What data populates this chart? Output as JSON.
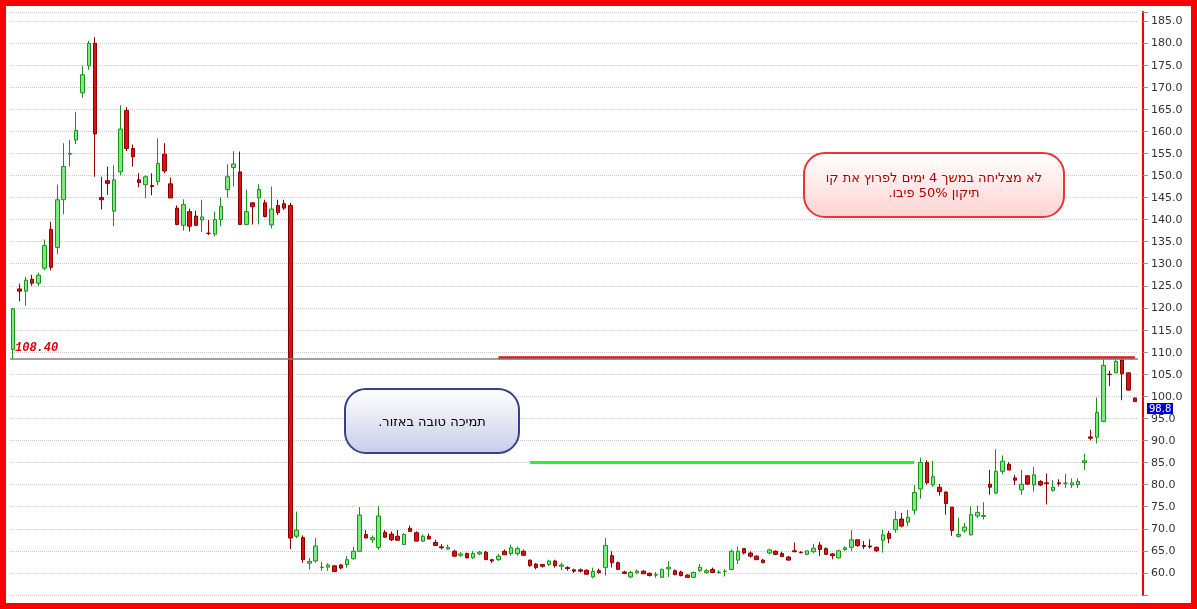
{
  "chart_data": {
    "type": "candlestick",
    "categories": [
      null,
      null,
      null,
      null,
      null,
      null,
      null,
      null,
      null,
      null,
      null,
      null,
      null,
      null,
      null,
      null,
      null,
      null,
      null,
      null,
      null,
      null,
      null,
      null,
      null,
      null,
      null,
      null,
      null,
      null,
      null,
      null,
      null,
      null,
      null,
      null,
      null,
      null,
      null,
      null,
      null,
      null,
      null,
      null,
      null,
      null,
      null,
      null,
      null,
      null,
      null,
      null,
      null,
      null,
      null,
      null,
      null,
      null,
      null,
      null,
      null,
      null,
      null,
      null,
      null,
      null,
      null,
      null,
      null,
      null,
      null,
      null,
      null,
      null,
      null,
      null,
      null,
      null,
      null,
      null,
      null,
      null,
      null,
      null,
      null,
      null,
      null,
      null,
      null,
      null,
      null,
      null,
      null,
      null,
      null,
      null,
      null,
      null,
      null,
      null,
      null,
      null,
      null,
      null,
      null,
      null,
      null,
      null,
      null,
      null,
      null,
      null,
      null,
      null,
      null,
      null,
      null,
      null,
      null,
      null,
      null,
      null,
      null,
      null,
      null,
      null,
      null,
      null,
      null,
      null,
      null,
      null,
      null,
      null,
      null,
      null,
      null,
      null,
      null,
      null,
      null,
      null,
      null,
      null,
      null,
      null,
      null,
      null,
      null,
      null,
      null,
      null,
      null,
      null,
      null,
      null,
      null,
      null,
      null,
      null,
      null,
      null,
      null,
      null,
      null,
      null,
      null,
      null,
      null,
      null,
      null,
      null,
      null,
      null,
      null,
      null,
      null,
      null,
      null
    ],
    "ohlc": [
      [
        110.6,
        120.0,
        108.4,
        119.8
      ],
      [
        124.3,
        125.5,
        121.5,
        123.8
      ],
      [
        123.8,
        127.0,
        120.5,
        126.3
      ],
      [
        126.5,
        127.5,
        125.0,
        125.6
      ],
      [
        125.6,
        128.0,
        125.0,
        127.4
      ],
      [
        129.0,
        135.5,
        128.5,
        134.1
      ],
      [
        137.8,
        139.5,
        128.5,
        129.2
      ],
      [
        133.7,
        147.9,
        132.2,
        144.5
      ],
      [
        144.5,
        157.3,
        141.2,
        152.0
      ],
      [
        154.8,
        158.0,
        152.0,
        155.0
      ],
      [
        158.0,
        164.4,
        157.1,
        160.2
      ],
      [
        168.7,
        174.8,
        167.6,
        172.8
      ],
      [
        174.8,
        180.5,
        173.9,
        179.9
      ],
      [
        179.9,
        181.3,
        149.7,
        159.4
      ],
      [
        145.0,
        149.7,
        142.3,
        144.5
      ],
      [
        148.8,
        152.0,
        145.6,
        148.2
      ],
      [
        141.9,
        152.3,
        138.5,
        149.0
      ],
      [
        150.8,
        165.9,
        150.0,
        160.5
      ],
      [
        164.7,
        165.5,
        155.5,
        156.1
      ],
      [
        156.1,
        157.0,
        152.0,
        154.2
      ],
      [
        149.0,
        150.5,
        147.3,
        148.4
      ],
      [
        147.9,
        150.0,
        144.9,
        149.7
      ],
      [
        147.7,
        150.5,
        145.5,
        147.5
      ],
      [
        148.6,
        158.4,
        147.8,
        152.7
      ],
      [
        154.8,
        157.3,
        150.5,
        151.0
      ],
      [
        148.1,
        149.5,
        144.9,
        144.9
      ],
      [
        142.6,
        143.2,
        138.7,
        138.9
      ],
      [
        138.7,
        144.6,
        137.5,
        143.4
      ],
      [
        141.8,
        142.5,
        137.3,
        138.5
      ],
      [
        140.8,
        142.0,
        138.5,
        138.7
      ],
      [
        139.9,
        144.5,
        137.2,
        140.6
      ],
      [
        136.9,
        139.9,
        136.5,
        136.9
      ],
      [
        136.7,
        141.8,
        136.2,
        140.0
      ],
      [
        140.0,
        145.0,
        138.5,
        143.0
      ],
      [
        146.8,
        152.5,
        145.0,
        149.7
      ],
      [
        151.8,
        155.5,
        147.5,
        152.6
      ],
      [
        150.8,
        155.4,
        138.9,
        138.9
      ],
      [
        138.9,
        146.8,
        138.7,
        141.8
      ],
      [
        143.8,
        143.8,
        138.9,
        142.9
      ],
      [
        144.9,
        148.0,
        138.9,
        146.8
      ],
      [
        143.8,
        144.5,
        140.5,
        140.7
      ],
      [
        138.8,
        147.5,
        138.0,
        142.4
      ],
      [
        143.2,
        144.5,
        141.0,
        141.6
      ],
      [
        143.6,
        144.5,
        142.2,
        142.6
      ],
      [
        143.2,
        143.8,
        65.4,
        67.9
      ],
      [
        68.3,
        73.9,
        67.9,
        69.7
      ],
      [
        68.0,
        68.5,
        62.3,
        63.0
      ],
      [
        62.2,
        63.4,
        60.8,
        62.6
      ],
      [
        62.7,
        67.9,
        62.3,
        66.1
      ],
      [
        61.2,
        62.5,
        60.5,
        61.3
      ],
      [
        61.3,
        62.2,
        60.5,
        61.8
      ],
      [
        61.6,
        61.7,
        60.3,
        60.3
      ],
      [
        61.8,
        62.0,
        60.8,
        61.1
      ],
      [
        61.9,
        63.8,
        61.2,
        63.0
      ],
      [
        63.2,
        65.9,
        63.0,
        64.9
      ],
      [
        64.9,
        74.9,
        64.9,
        73.1
      ],
      [
        68.7,
        69.7,
        67.9,
        67.9
      ],
      [
        67.5,
        68.5,
        66.8,
        68.0
      ],
      [
        65.8,
        75.2,
        65.3,
        72.9
      ],
      [
        69.2,
        69.7,
        68.0,
        68.1
      ],
      [
        68.8,
        69.4,
        67.2,
        67.5
      ],
      [
        68.3,
        69.7,
        67.4,
        67.4
      ],
      [
        66.4,
        69.0,
        66.4,
        68.7
      ],
      [
        70.1,
        70.7,
        69.4,
        69.4
      ],
      [
        69.1,
        69.4,
        67.2,
        67.2
      ],
      [
        67.2,
        68.7,
        67.0,
        68.3
      ],
      [
        68.3,
        68.9,
        67.6,
        67.7
      ],
      [
        66.9,
        67.5,
        66.1,
        66.2
      ],
      [
        65.9,
        66.5,
        65.3,
        65.7
      ],
      [
        65.4,
        66.4,
        65.3,
        65.8
      ],
      [
        64.9,
        65.3,
        63.6,
        63.8
      ],
      [
        64.0,
        64.7,
        63.6,
        64.3
      ],
      [
        64.4,
        64.6,
        63.4,
        63.4
      ],
      [
        63.4,
        65.0,
        63.2,
        64.4
      ],
      [
        64.3,
        65.0,
        64.0,
        64.7
      ],
      [
        64.7,
        65.0,
        63.0,
        63.0
      ],
      [
        63.0,
        63.2,
        62.3,
        62.7
      ],
      [
        63.0,
        64.3,
        62.7,
        63.8
      ],
      [
        64.9,
        65.3,
        64.1,
        64.1
      ],
      [
        64.4,
        66.4,
        63.9,
        65.7
      ],
      [
        64.4,
        66.0,
        63.9,
        65.5
      ],
      [
        64.9,
        65.3,
        63.9,
        64.0
      ],
      [
        62.9,
        63.0,
        61.3,
        61.7
      ],
      [
        62.0,
        62.2,
        60.8,
        61.2
      ],
      [
        61.9,
        62.0,
        61.2,
        61.5
      ],
      [
        61.9,
        63.0,
        61.6,
        62.7
      ],
      [
        62.7,
        63.0,
        61.2,
        61.6
      ],
      [
        61.5,
        62.3,
        60.6,
        61.8
      ],
      [
        61.2,
        61.5,
        60.5,
        61.0
      ],
      [
        60.7,
        61.0,
        60.0,
        60.4
      ],
      [
        60.7,
        61.0,
        60.1,
        60.4
      ],
      [
        60.6,
        60.8,
        59.6,
        59.7
      ],
      [
        59.1,
        61.2,
        58.8,
        60.3
      ],
      [
        60.5,
        61.0,
        59.8,
        60.1
      ],
      [
        61.2,
        67.9,
        59.4,
        66.2
      ],
      [
        63.9,
        64.9,
        61.2,
        62.3
      ],
      [
        62.3,
        62.6,
        60.8,
        60.8
      ],
      [
        60.2,
        60.5,
        59.9,
        59.9
      ],
      [
        59.1,
        60.5,
        58.8,
        60.1
      ],
      [
        60.0,
        60.8,
        59.8,
        60.4
      ],
      [
        60.4,
        60.6,
        59.8,
        59.8
      ],
      [
        59.9,
        60.1,
        59.2,
        59.4
      ],
      [
        59.5,
        60.2,
        58.9,
        59.6
      ],
      [
        59.0,
        61.0,
        58.9,
        60.8
      ],
      [
        60.9,
        62.7,
        59.1,
        61.3
      ],
      [
        60.5,
        60.8,
        59.6,
        59.6
      ],
      [
        60.2,
        60.5,
        59.2,
        59.4
      ],
      [
        59.5,
        59.7,
        59.0,
        59.0
      ],
      [
        59.0,
        60.3,
        58.9,
        60.1
      ],
      [
        60.5,
        62.0,
        60.2,
        61.3
      ],
      [
        60.1,
        60.9,
        59.8,
        60.5
      ],
      [
        60.8,
        61.2,
        60.1,
        60.1
      ],
      [
        60.1,
        60.6,
        59.8,
        60.2
      ],
      [
        60.3,
        60.8,
        59.2,
        60.4
      ],
      [
        60.8,
        65.3,
        60.6,
        64.9
      ],
      [
        62.9,
        66.0,
        62.0,
        64.9
      ],
      [
        65.5,
        65.6,
        64.2,
        64.5
      ],
      [
        64.5,
        64.9,
        63.5,
        63.8
      ],
      [
        63.8,
        64.0,
        63.0,
        63.0
      ],
      [
        62.9,
        63.2,
        62.3,
        62.3
      ],
      [
        64.5,
        65.5,
        64.2,
        65.2
      ],
      [
        64.9,
        65.1,
        64.0,
        64.2
      ],
      [
        64.4,
        64.8,
        63.6,
        63.7
      ],
      [
        63.6,
        63.8,
        62.8,
        62.9
      ],
      [
        65.0,
        66.9,
        64.7,
        64.8
      ],
      [
        64.7,
        64.9,
        64.4,
        64.6
      ],
      [
        64.2,
        65.0,
        64.1,
        65.0
      ],
      [
        64.8,
        66.6,
        64.4,
        65.6
      ],
      [
        66.3,
        67.0,
        63.8,
        65.3
      ],
      [
        65.5,
        65.8,
        64.2,
        64.2
      ],
      [
        64.3,
        64.5,
        63.1,
        63.9
      ],
      [
        63.4,
        65.3,
        63.3,
        65.0
      ],
      [
        65.3,
        66.0,
        65.0,
        65.7
      ],
      [
        65.8,
        69.7,
        64.9,
        67.5
      ],
      [
        67.5,
        67.5,
        65.9,
        66.2
      ],
      [
        66.2,
        67.2,
        65.4,
        66.0
      ],
      [
        66.1,
        67.6,
        65.5,
        65.9
      ],
      [
        65.8,
        66.0,
        64.7,
        65.0
      ],
      [
        67.4,
        69.8,
        64.6,
        68.6
      ],
      [
        68.9,
        69.5,
        66.7,
        67.8
      ],
      [
        69.8,
        74.0,
        69.1,
        72.1
      ],
      [
        72.2,
        73.6,
        70.3,
        70.6
      ],
      [
        71.5,
        74.3,
        70.6,
        72.6
      ],
      [
        74.2,
        79.9,
        73.2,
        78.2
      ],
      [
        79.0,
        86.1,
        76.8,
        85.0
      ],
      [
        85.0,
        85.5,
        80.0,
        80.4
      ],
      [
        79.9,
        85.4,
        79.5,
        81.8
      ],
      [
        79.4,
        80.1,
        77.5,
        78.4
      ],
      [
        78.3,
        78.5,
        73.2,
        75.7
      ],
      [
        74.9,
        74.9,
        68.4,
        69.6
      ],
      [
        68.3,
        72.5,
        68.0,
        68.7
      ],
      [
        69.5,
        71.3,
        69.1,
        70.4
      ],
      [
        68.6,
        75.1,
        68.5,
        73.2
      ],
      [
        72.9,
        75.2,
        72.4,
        73.7
      ],
      [
        72.8,
        76.0,
        72.1,
        73.0
      ],
      [
        80.1,
        83.3,
        77.7,
        79.4
      ],
      [
        78.1,
        88.0,
        77.8,
        83.0
      ],
      [
        83.0,
        86.6,
        82.3,
        85.3
      ],
      [
        84.6,
        85.1,
        83.3,
        83.3
      ],
      [
        81.5,
        82.2,
        79.9,
        81.0
      ],
      [
        78.8,
        83.3,
        77.7,
        80.1
      ],
      [
        82.0,
        82.2,
        79.9,
        80.1
      ],
      [
        79.9,
        84.0,
        78.4,
        82.2
      ],
      [
        80.7,
        81.0,
        79.7,
        79.9
      ],
      [
        80.4,
        82.5,
        75.5,
        80.2
      ],
      [
        78.7,
        81.0,
        78.4,
        79.4
      ],
      [
        80.4,
        81.2,
        79.6,
        80.2
      ],
      [
        80.3,
        82.4,
        79.2,
        80.3
      ],
      [
        79.9,
        81.4,
        79.2,
        80.4
      ],
      [
        80.0,
        81.4,
        79.2,
        80.7
      ],
      [
        85.0,
        87.0,
        83.3,
        85.4
      ],
      [
        90.8,
        92.4,
        90.0,
        90.5
      ],
      [
        90.7,
        99.7,
        89.3,
        96.3
      ],
      [
        94.3,
        108.5,
        94.3,
        107.0
      ],
      [
        105.0,
        105.8,
        102.3,
        104.9
      ],
      [
        105.3,
        108.5,
        105.2,
        107.9
      ],
      [
        108.2,
        108.5,
        99.1,
        105.1
      ],
      [
        105.3,
        105.3,
        101.3,
        101.4
      ],
      [
        99.6,
        99.7,
        98.7,
        98.8
      ]
    ],
    "series": [
      {
        "type": "line",
        "color": "#ee1111",
        "values": [
          null,
          null,
          null,
          null,
          null,
          null,
          null,
          null,
          null,
          null,
          null,
          null,
          null,
          null,
          null,
          null,
          null,
          null,
          null,
          null,
          null,
          null,
          null,
          null,
          null,
          null,
          null,
          null,
          null,
          null,
          null,
          null,
          null,
          null,
          null,
          null,
          null,
          null,
          null,
          null,
          null,
          null,
          null,
          null,
          null,
          null,
          null,
          null,
          null,
          null,
          null,
          null,
          null,
          null,
          null,
          null,
          null,
          null,
          null,
          null,
          null,
          null,
          null,
          null,
          null,
          null,
          null,
          null,
          null,
          null,
          null,
          null,
          null,
          null,
          null,
          null,
          null,
          108.7,
          108.7,
          108.7,
          108.7,
          108.7,
          108.7,
          108.7,
          108.7,
          108.7,
          108.7,
          108.7,
          108.7,
          108.7,
          108.7,
          108.7,
          108.7,
          108.7,
          108.7,
          108.7,
          108.7,
          108.7,
          108.7,
          108.7,
          108.7,
          108.7,
          108.7,
          108.7,
          108.7,
          108.7,
          108.7,
          108.7,
          108.7,
          108.7,
          108.7,
          108.7,
          108.7,
          108.7,
          108.7,
          108.7,
          108.7,
          108.7,
          108.7,
          108.7,
          108.7,
          108.7,
          108.7,
          108.7,
          108.7,
          108.7,
          108.7,
          108.7,
          108.7,
          108.7,
          108.7,
          108.7,
          108.7,
          108.7,
          108.7,
          108.7,
          108.7,
          108.7,
          108.7,
          108.7,
          108.7,
          108.7,
          108.7,
          108.7,
          108.7,
          108.7,
          108.7,
          108.7,
          108.7,
          108.7,
          108.7,
          108.7,
          108.7,
          108.7,
          108.7,
          108.7,
          108.7,
          108.7,
          108.7,
          108.7,
          108.7,
          108.7,
          108.7,
          108.7,
          108.7,
          108.7,
          108.7,
          108.7,
          108.7,
          108.7,
          108.7,
          108.7,
          108.7,
          108.7,
          108.7,
          108.7,
          108.7,
          108.7,
          108.7
        ]
      },
      {
        "type": "line",
        "color": "#33ee33",
        "values": [
          null,
          null,
          null,
          null,
          null,
          null,
          null,
          null,
          null,
          null,
          null,
          null,
          null,
          null,
          null,
          null,
          null,
          null,
          null,
          null,
          null,
          null,
          null,
          null,
          null,
          null,
          null,
          null,
          null,
          null,
          null,
          null,
          null,
          null,
          null,
          null,
          null,
          null,
          null,
          null,
          null,
          null,
          null,
          null,
          null,
          null,
          null,
          null,
          null,
          null,
          null,
          null,
          null,
          null,
          null,
          null,
          null,
          null,
          null,
          null,
          null,
          null,
          null,
          null,
          null,
          null,
          null,
          null,
          null,
          null,
          null,
          null,
          null,
          null,
          null,
          null,
          null,
          null,
          null,
          null,
          null,
          null,
          85,
          85,
          85,
          85,
          85,
          85,
          85,
          85,
          85,
          85,
          85,
          85,
          85,
          85,
          85,
          85,
          85,
          85,
          85,
          85,
          85,
          85,
          85,
          85,
          85,
          85,
          85,
          85,
          85,
          85,
          85,
          85,
          85,
          85,
          85,
          85,
          85,
          85,
          85,
          85,
          85,
          85,
          85,
          85,
          85,
          85,
          85,
          85,
          85,
          85,
          85,
          85,
          85,
          85,
          85,
          85,
          85,
          85,
          85,
          85,
          85,
          85,
          null,
          null,
          null,
          null,
          null,
          null,
          null,
          null,
          null,
          null,
          null,
          null,
          null,
          null,
          null,
          null,
          null,
          null,
          null,
          null,
          null,
          null,
          null,
          null,
          null,
          null,
          null,
          null,
          null,
          null,
          null,
          null,
          null,
          null,
          null
        ]
      }
    ],
    "ylim": [
      55,
      187
    ],
    "yticks": [
      {
        "value": 60,
        "label": "60.0"
      },
      {
        "value": 65,
        "label": "65.0"
      },
      {
        "value": 70,
        "label": "70.0"
      },
      {
        "value": 75,
        "label": "75.0"
      },
      {
        "value": 80,
        "label": "80.0"
      },
      {
        "value": 85,
        "label": "85.0"
      },
      {
        "value": 90,
        "label": "90.0"
      },
      {
        "value": 95,
        "label": "95.0"
      },
      {
        "value": 100,
        "label": "100.0"
      },
      {
        "value": 105,
        "label": "105.0"
      },
      {
        "value": 110,
        "label": "110.0"
      },
      {
        "value": 115,
        "label": "115.0"
      },
      {
        "value": 120,
        "label": "120.0"
      },
      {
        "value": 125,
        "label": "125.0"
      },
      {
        "value": 130,
        "label": "130.0"
      },
      {
        "value": 135,
        "label": "135.0"
      },
      {
        "value": 140,
        "label": "140.0"
      },
      {
        "value": 145,
        "label": "145.0"
      },
      {
        "value": 150,
        "label": "150.0"
      },
      {
        "value": 155,
        "label": "155.0"
      },
      {
        "value": 160,
        "label": "160.0"
      },
      {
        "value": 165,
        "label": "165.0"
      },
      {
        "value": 170,
        "label": "170.0"
      },
      {
        "value": 175,
        "label": "175.0"
      },
      {
        "value": 180,
        "label": "180.0"
      },
      {
        "value": 185,
        "label": "185.0"
      }
    ],
    "grid": "y",
    "marker": "none",
    "ref_lines": [
      {
        "axis": "y",
        "value": 108.4,
        "label": "108.40",
        "color": "#808080"
      }
    ],
    "annotations": [
      "תמיכה טובה באזור.",
      "לא מצליחה במשך 4 ימים לפרוץ את קו תיקון 50% פיבו.",
      "98.8"
    ]
  }
}
